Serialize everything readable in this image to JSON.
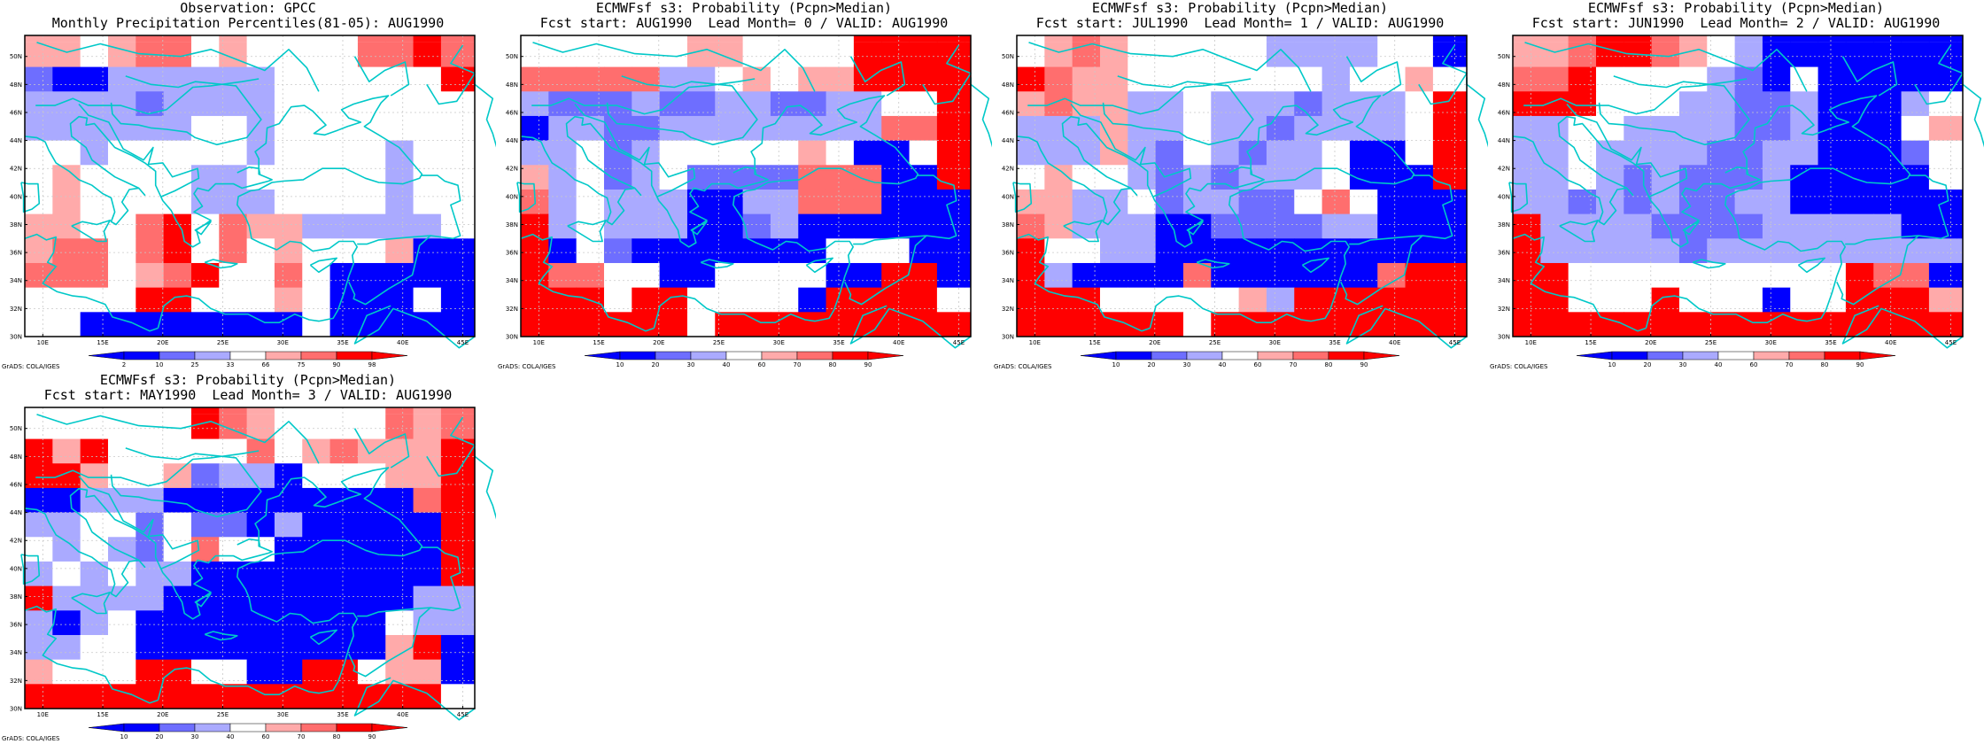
{
  "colors": {
    "blue_strong": "#0000ff",
    "blue_medium": "#6e6eff",
    "blue_light": "#aaaaff",
    "white": "#ffffff",
    "red_light": "#ffaaaa",
    "red_medium": "#ff6e6e",
    "red_strong": "#ff0000",
    "coastline": "#00c8c8",
    "grid": "#c8c8c8"
  },
  "axes": {
    "lat_labels": [
      "30N",
      "32N",
      "34N",
      "36N",
      "38N",
      "40N",
      "42N",
      "44N",
      "46N",
      "48N",
      "50N"
    ],
    "lon_labels": [
      "10E",
      "15E",
      "20E",
      "25E",
      "30E",
      "35E",
      "40E",
      "45E"
    ]
  },
  "footer": "GrADS: COLA/IGES",
  "panels": [
    {
      "id": "obs",
      "title_line1": "Observation: GPCC",
      "title_line2": "Monthly Precipitation Percentiles(81-05): AUG1990",
      "colorbar_labels": [
        "2",
        "10",
        "25",
        "33",
        "66",
        "75",
        "90",
        "98"
      ],
      "grid": [
        [
          4,
          4,
          3,
          4,
          5,
          5,
          3,
          4,
          3,
          3,
          3,
          3,
          5,
          5,
          6,
          5
        ],
        [
          1,
          0,
          0,
          2,
          2,
          2,
          2,
          2,
          2,
          3,
          3,
          3,
          3,
          3,
          3,
          6
        ],
        [
          2,
          2,
          2,
          2,
          1,
          2,
          2,
          2,
          2,
          3,
          3,
          3,
          3,
          3,
          3,
          3
        ],
        [
          2,
          2,
          2,
          2,
          2,
          2,
          3,
          3,
          2,
          3,
          3,
          3,
          3,
          3,
          3,
          3
        ],
        [
          3,
          3,
          2,
          3,
          3,
          3,
          3,
          3,
          2,
          3,
          3,
          3,
          3,
          2,
          3,
          3
        ],
        [
          3,
          4,
          3,
          3,
          3,
          3,
          2,
          2,
          3,
          3,
          3,
          3,
          3,
          2,
          3,
          3
        ],
        [
          3,
          4,
          3,
          3,
          3,
          3,
          2,
          2,
          2,
          3,
          3,
          3,
          3,
          2,
          3,
          3
        ],
        [
          4,
          4,
          3,
          3,
          5,
          6,
          3,
          5,
          4,
          4,
          2,
          2,
          2,
          2,
          2,
          3
        ],
        [
          4,
          5,
          5,
          3,
          5,
          6,
          3,
          5,
          3,
          4,
          3,
          3,
          3,
          4,
          0,
          0
        ],
        [
          5,
          5,
          5,
          3,
          4,
          5,
          6,
          3,
          3,
          5,
          3,
          0,
          0,
          0,
          0,
          0
        ],
        [
          3,
          3,
          3,
          3,
          6,
          6,
          3,
          3,
          3,
          4,
          3,
          0,
          0,
          0,
          3,
          0
        ],
        [
          3,
          3,
          0,
          0,
          0,
          0,
          0,
          0,
          0,
          0,
          3,
          0,
          0,
          0,
          0,
          0
        ]
      ]
    },
    {
      "id": "lead0",
      "title_line1": "ECMWFsf s3: Probability (Pcpn>Median)",
      "title_line2": "Fcst start: AUG1990  Lead Month= 0 / VALID: AUG1990",
      "colorbar_labels": [
        "10",
        "20",
        "30",
        "40",
        "60",
        "70",
        "80",
        "90"
      ],
      "grid": [
        [
          3,
          3,
          3,
          3,
          3,
          3,
          4,
          4,
          3,
          3,
          3,
          3,
          6,
          6,
          6,
          6
        ],
        [
          5,
          5,
          5,
          5,
          5,
          2,
          2,
          3,
          4,
          3,
          4,
          4,
          6,
          6,
          6,
          6
        ],
        [
          2,
          1,
          1,
          1,
          2,
          1,
          1,
          2,
          2,
          1,
          1,
          2,
          2,
          3,
          3,
          6
        ],
        [
          0,
          2,
          2,
          1,
          1,
          2,
          2,
          2,
          2,
          2,
          2,
          2,
          2,
          5,
          5,
          6
        ],
        [
          2,
          2,
          3,
          1,
          2,
          3,
          3,
          3,
          3,
          3,
          4,
          3,
          0,
          0,
          3,
          6
        ],
        [
          4,
          2,
          3,
          1,
          2,
          3,
          1,
          1,
          1,
          1,
          5,
          5,
          5,
          0,
          0,
          6
        ],
        [
          5,
          2,
          3,
          2,
          2,
          2,
          0,
          0,
          2,
          2,
          5,
          5,
          5,
          0,
          0,
          0
        ],
        [
          6,
          2,
          3,
          2,
          2,
          2,
          0,
          0,
          1,
          2,
          0,
          0,
          0,
          0,
          0,
          0
        ],
        [
          6,
          0,
          3,
          1,
          0,
          0,
          0,
          0,
          0,
          0,
          0,
          3,
          3,
          3,
          0,
          0
        ],
        [
          6,
          5,
          5,
          3,
          3,
          0,
          0,
          3,
          3,
          3,
          3,
          0,
          0,
          6,
          6,
          0
        ],
        [
          6,
          6,
          6,
          3,
          6,
          6,
          3,
          3,
          3,
          3,
          0,
          6,
          6,
          6,
          6,
          3
        ],
        [
          6,
          6,
          6,
          6,
          6,
          6,
          3,
          6,
          6,
          6,
          6,
          6,
          6,
          6,
          6,
          6
        ]
      ]
    },
    {
      "id": "lead1",
      "title_line1": "ECMWFsf s3: Probability (Pcpn>Median)",
      "title_line2": "Fcst start: JUL1990  Lead Month= 1 / VALID: AUG1990",
      "colorbar_labels": [
        "10",
        "20",
        "30",
        "40",
        "60",
        "70",
        "80",
        "90"
      ],
      "grid": [
        [
          3,
          4,
          5,
          4,
          3,
          3,
          3,
          3,
          3,
          2,
          2,
          2,
          2,
          3,
          3,
          0
        ],
        [
          6,
          5,
          4,
          4,
          3,
          3,
          3,
          3,
          3,
          3,
          3,
          2,
          3,
          3,
          4,
          3
        ],
        [
          4,
          5,
          4,
          4,
          2,
          2,
          3,
          2,
          2,
          2,
          1,
          2,
          2,
          2,
          3,
          6
        ],
        [
          2,
          2,
          2,
          4,
          2,
          2,
          3,
          2,
          2,
          1,
          2,
          2,
          2,
          2,
          3,
          6
        ],
        [
          2,
          2,
          2,
          4,
          2,
          1,
          3,
          2,
          1,
          2,
          2,
          3,
          0,
          0,
          3,
          6
        ],
        [
          3,
          4,
          3,
          3,
          2,
          1,
          2,
          1,
          2,
          2,
          2,
          3,
          0,
          0,
          0,
          6
        ],
        [
          4,
          4,
          2,
          2,
          3,
          1,
          2,
          2,
          1,
          1,
          3,
          5,
          3,
          0,
          0,
          0
        ],
        [
          5,
          4,
          2,
          2,
          2,
          0,
          0,
          1,
          1,
          1,
          1,
          2,
          2,
          0,
          0,
          0
        ],
        [
          6,
          3,
          3,
          2,
          2,
          0,
          0,
          0,
          0,
          0,
          0,
          0,
          0,
          0,
          0,
          0
        ],
        [
          6,
          2,
          0,
          0,
          0,
          0,
          5,
          0,
          0,
          0,
          0,
          0,
          0,
          5,
          6,
          6
        ],
        [
          6,
          6,
          6,
          3,
          3,
          3,
          3,
          3,
          4,
          2,
          6,
          6,
          6,
          6,
          6,
          6
        ],
        [
          6,
          6,
          6,
          6,
          6,
          6,
          3,
          6,
          6,
          6,
          6,
          6,
          6,
          6,
          6,
          6
        ]
      ]
    },
    {
      "id": "lead2",
      "title_line1": "ECMWFsf s3: Probability (Pcpn>Median)",
      "title_line2": "Fcst start: JUN1990  Lead Month= 2 / VALID: AUG1990",
      "colorbar_labels": [
        "10",
        "20",
        "30",
        "40",
        "60",
        "70",
        "80",
        "90"
      ],
      "grid": [
        [
          4,
          4,
          5,
          6,
          6,
          5,
          4,
          3,
          2,
          0,
          0,
          0,
          0,
          0,
          0,
          0
        ],
        [
          5,
          5,
          6,
          3,
          3,
          3,
          3,
          2,
          1,
          0,
          3,
          0,
          0,
          0,
          0,
          0
        ],
        [
          6,
          6,
          6,
          3,
          3,
          3,
          2,
          2,
          1,
          1,
          2,
          0,
          0,
          0,
          2,
          3
        ],
        [
          2,
          2,
          3,
          3,
          2,
          2,
          2,
          2,
          1,
          1,
          2,
          0,
          0,
          0,
          3,
          4
        ],
        [
          2,
          2,
          3,
          2,
          2,
          2,
          2,
          1,
          1,
          2,
          2,
          0,
          0,
          0,
          1,
          3
        ],
        [
          2,
          2,
          3,
          2,
          1,
          2,
          1,
          1,
          1,
          2,
          0,
          0,
          0,
          0,
          0,
          3
        ],
        [
          2,
          2,
          1,
          2,
          1,
          2,
          1,
          1,
          2,
          2,
          0,
          0,
          0,
          0,
          0,
          0
        ],
        [
          6,
          2,
          2,
          2,
          2,
          1,
          1,
          1,
          1,
          2,
          2,
          2,
          2,
          2,
          0,
          0
        ],
        [
          6,
          2,
          2,
          2,
          2,
          2,
          1,
          2,
          2,
          2,
          2,
          2,
          2,
          2,
          2,
          2
        ],
        [
          6,
          6,
          3,
          3,
          3,
          3,
          3,
          3,
          3,
          3,
          3,
          3,
          6,
          5,
          5,
          0
        ],
        [
          6,
          6,
          3,
          3,
          3,
          6,
          3,
          3,
          3,
          0,
          3,
          3,
          6,
          6,
          6,
          4
        ],
        [
          6,
          6,
          6,
          6,
          6,
          6,
          6,
          6,
          6,
          6,
          6,
          6,
          6,
          6,
          6,
          6
        ]
      ]
    },
    {
      "id": "lead3",
      "title_line1": "ECMWFsf s3: Probability (Pcpn>Median)",
      "title_line2": "Fcst start: MAY1990  Lead Month= 3 / VALID: AUG1990",
      "colorbar_labels": [
        "10",
        "20",
        "30",
        "40",
        "60",
        "70",
        "80",
        "90"
      ],
      "grid": [
        [
          3,
          3,
          3,
          3,
          3,
          3,
          6,
          5,
          4,
          3,
          3,
          3,
          3,
          5,
          4,
          5
        ],
        [
          6,
          4,
          6,
          3,
          3,
          3,
          3,
          3,
          5,
          3,
          4,
          5,
          4,
          4,
          4,
          6
        ],
        [
          6,
          6,
          4,
          3,
          3,
          4,
          1,
          2,
          2,
          0,
          3,
          3,
          3,
          4,
          4,
          6
        ],
        [
          0,
          0,
          2,
          2,
          2,
          0,
          0,
          0,
          0,
          0,
          0,
          0,
          0,
          0,
          5,
          6
        ],
        [
          2,
          2,
          3,
          3,
          1,
          3,
          1,
          1,
          0,
          2,
          0,
          0,
          0,
          0,
          0,
          6
        ],
        [
          3,
          2,
          3,
          2,
          1,
          3,
          5,
          3,
          3,
          0,
          0,
          0,
          0,
          0,
          0,
          6
        ],
        [
          2,
          3,
          2,
          3,
          2,
          2,
          0,
          0,
          0,
          0,
          0,
          0,
          0,
          0,
          0,
          6
        ],
        [
          6,
          2,
          2,
          2,
          2,
          0,
          0,
          0,
          0,
          0,
          0,
          0,
          0,
          0,
          2,
          2
        ],
        [
          2,
          0,
          2,
          3,
          0,
          0,
          0,
          0,
          0,
          0,
          0,
          0,
          0,
          3,
          2,
          2
        ],
        [
          2,
          2,
          3,
          3,
          0,
          0,
          0,
          0,
          0,
          0,
          0,
          0,
          0,
          4,
          6,
          0
        ],
        [
          4,
          3,
          3,
          3,
          6,
          6,
          3,
          3,
          0,
          0,
          6,
          6,
          3,
          4,
          4,
          0
        ],
        [
          6,
          6,
          6,
          6,
          6,
          6,
          6,
          6,
          6,
          6,
          6,
          6,
          6,
          6,
          6,
          3
        ]
      ]
    }
  ]
}
